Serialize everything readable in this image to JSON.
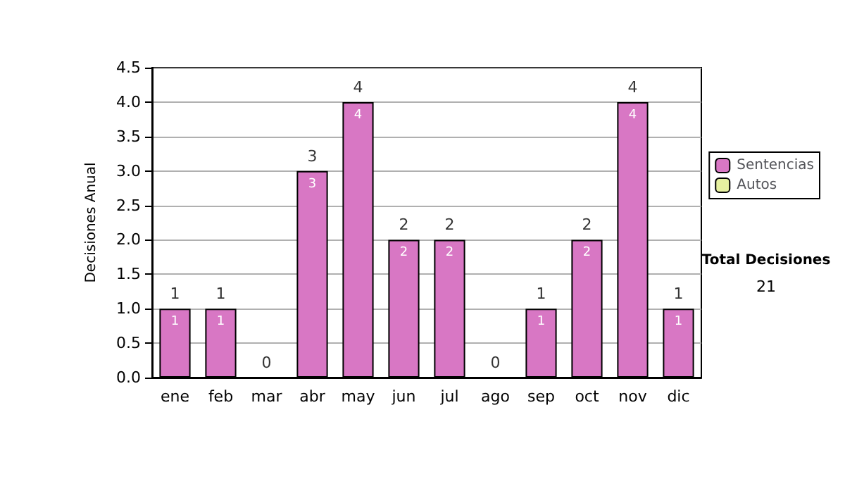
{
  "chart_data": {
    "type": "bar",
    "ylabel": "Decisiones Anual",
    "categories": [
      "ene",
      "feb",
      "mar",
      "abr",
      "may",
      "jun",
      "jul",
      "ago",
      "sep",
      "oct",
      "nov",
      "dic"
    ],
    "series": [
      {
        "name": "Sentencias",
        "color": "#d877c4",
        "values": [
          1,
          1,
          0,
          3,
          4,
          2,
          2,
          0,
          1,
          2,
          4,
          1
        ],
        "value_labels": [
          "1",
          "1",
          null,
          "3",
          "4",
          "2",
          "2",
          null,
          "1",
          "2",
          "4",
          "1"
        ]
      },
      {
        "name": "Autos",
        "color": "#e6f0a0",
        "values": [
          0,
          0,
          0,
          0,
          0,
          0,
          0,
          0,
          0,
          0,
          0,
          0
        ]
      }
    ],
    "stacked": true,
    "totals": [
      "1",
      "1",
      "0",
      "3",
      "4",
      "2",
      "2",
      "0",
      "1",
      "2",
      "4",
      "1"
    ],
    "ylim": [
      0,
      4.5
    ],
    "yticks": [
      {
        "value": 0,
        "label": "0.0"
      },
      {
        "value": 0.5,
        "label": "0.5"
      },
      {
        "value": 1,
        "label": "1.0"
      },
      {
        "value": 1.5,
        "label": "1.5"
      },
      {
        "value": 2,
        "label": "2.0"
      },
      {
        "value": 2.5,
        "label": "2.5"
      },
      {
        "value": 3,
        "label": "3.0"
      },
      {
        "value": 3.5,
        "label": "3.5"
      },
      {
        "value": 4,
        "label": "4.0"
      },
      {
        "value": 4.5,
        "label": "4.5"
      }
    ],
    "grid": "y",
    "legend": "right",
    "annotations": [
      "Total Decisiones",
      "21"
    ]
  }
}
